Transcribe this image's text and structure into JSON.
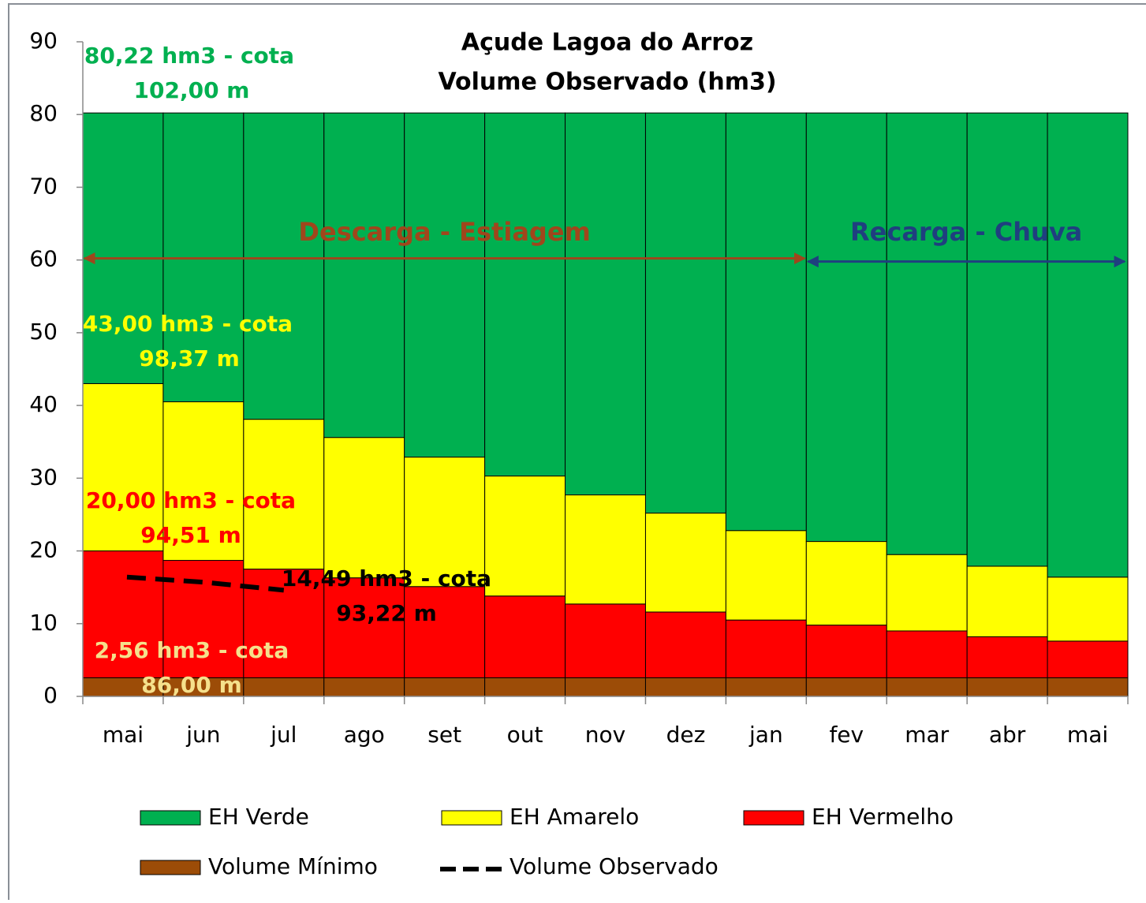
{
  "chart_data": {
    "type": "stacked_bar",
    "title": "Açude Lagoa do Arroz",
    "subtitle": "Volume Observado (hm3)",
    "categories": [
      "mai",
      "jun",
      "jul",
      "ago",
      "set",
      "out",
      "nov",
      "dez",
      "jan",
      "fev",
      "mar",
      "abr",
      "mai"
    ],
    "series": [
      {
        "name": "Volume Mínimo",
        "color": "#9c4c07",
        "values": [
          2.56,
          2.56,
          2.56,
          2.56,
          2.56,
          2.56,
          2.56,
          2.56,
          2.56,
          2.56,
          2.56,
          2.56,
          2.56
        ]
      },
      {
        "name": "EH Vermelho",
        "color": "#ff0000",
        "values": [
          17.44,
          16.14,
          14.94,
          13.74,
          12.54,
          11.24,
          10.14,
          9.04,
          7.94,
          7.24,
          6.44,
          5.64,
          5.04
        ]
      },
      {
        "name": "EH Amarelo",
        "color": "#ffff00",
        "values": [
          23,
          21.8,
          20.6,
          19.3,
          17.8,
          16.5,
          15.0,
          13.6,
          12.3,
          11.5,
          10.5,
          9.7,
          8.8
        ]
      },
      {
        "name": "EH Verde",
        "color": "#00b050",
        "values": [
          37.22,
          39.72,
          42.12,
          44.62,
          47.32,
          49.92,
          52.52,
          55.02,
          57.42,
          58.92,
          60.72,
          62.32,
          63.82
        ]
      }
    ],
    "line": {
      "name": "Volume Observado",
      "color": "#000000",
      "values": [
        16.4,
        15.7,
        14.6,
        null,
        null,
        null,
        null,
        null,
        null,
        null,
        null,
        null,
        null
      ]
    },
    "legend_order": [
      3,
      2,
      1,
      0
    ],
    "ylim": [
      0,
      90
    ],
    "yticks": [
      0,
      10,
      20,
      30,
      40,
      50,
      60,
      70,
      80,
      90
    ],
    "annotations": [
      {
        "text": "80,22 hm3 - cota",
        "color": "#00b050"
      },
      {
        "text": "102,00 m",
        "color": "#00b050"
      },
      {
        "text": "43,00 hm3 - cota",
        "color": "#ffff00"
      },
      {
        "text": "98,37 m",
        "color": "#ffff00"
      },
      {
        "text": "20,00 hm3 - cota",
        "color": "#ff0000"
      },
      {
        "text": "94,51 m",
        "color": "#ff0000"
      },
      {
        "text": "14,49 hm3 - cota",
        "color": "#000000"
      },
      {
        "text": "93,22 m",
        "color": "#000000"
      },
      {
        "text": "2,56 hm3 - cota",
        "color": "#f5e08c"
      },
      {
        "text": "86,00 m",
        "color": "#f5e08c"
      }
    ],
    "periods": [
      {
        "text": "Descarga - Estiagem",
        "color": "#a0461c"
      },
      {
        "text": "Recarga - Chuva",
        "color": "#1f3f7f"
      }
    ]
  }
}
